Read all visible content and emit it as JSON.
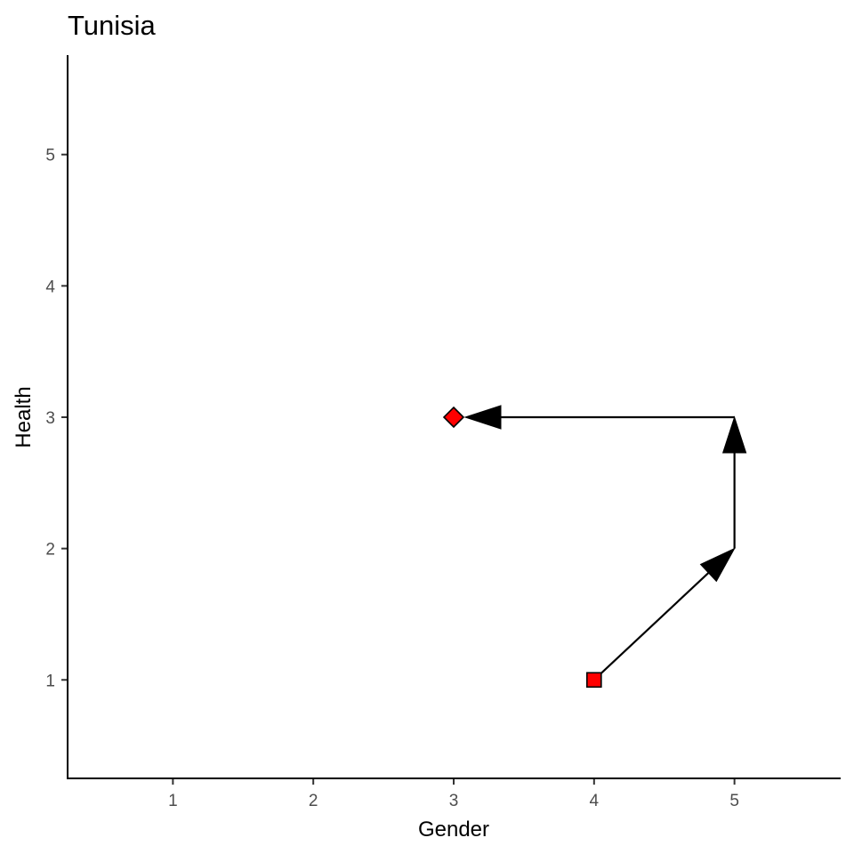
{
  "chart_data": {
    "type": "scatter",
    "title": "Tunisia",
    "xlabel": "Gender",
    "ylabel": "Health",
    "xlim": [
      0.25,
      5.75
    ],
    "ylim": [
      0.25,
      5.75
    ],
    "x_ticks": [
      1,
      2,
      3,
      4,
      5
    ],
    "y_ticks": [
      1,
      2,
      3,
      4,
      5
    ],
    "grid": false,
    "path": [
      {
        "x": 4,
        "y": 1
      },
      {
        "x": 5,
        "y": 2
      },
      {
        "x": 5,
        "y": 3
      },
      {
        "x": 3,
        "y": 3
      }
    ],
    "start_point": {
      "x": 4,
      "y": 1,
      "shape": "square",
      "color": "#ff0000"
    },
    "end_point": {
      "x": 3,
      "y": 3,
      "shape": "diamond",
      "color": "#ff0000"
    }
  }
}
